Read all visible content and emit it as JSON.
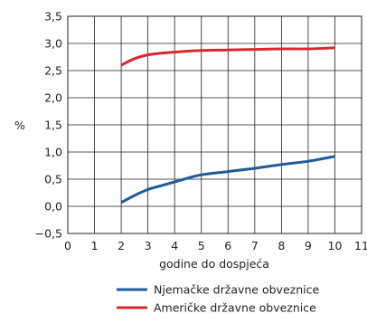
{
  "chart_data": {
    "type": "line",
    "title": "",
    "xlabel": "godine do dospjeća",
    "ylabel": "%",
    "xlim": [
      0,
      11
    ],
    "ylim": [
      -0.5,
      3.5
    ],
    "x_ticks": [
      0,
      1,
      2,
      3,
      4,
      5,
      6,
      7,
      8,
      9,
      10,
      11
    ],
    "y_ticks": [
      -0.5,
      0.0,
      0.5,
      1.0,
      1.5,
      2.0,
      2.5,
      3.0,
      3.5
    ],
    "y_tick_labels": [
      "−0,5",
      "0,0",
      "0,5",
      "1,0",
      "1,5",
      "2,0",
      "2,5",
      "3,0",
      "3,5"
    ],
    "x_tick_labels": [
      "0",
      "1",
      "2",
      "3",
      "4",
      "5",
      "6",
      "7",
      "8",
      "9",
      "10",
      "11"
    ],
    "grid": true,
    "legend_position": "bottom",
    "series": [
      {
        "name": "Njemačke državne obveznice",
        "color": "#1f5a99",
        "x": [
          2,
          2.5,
          3,
          3.5,
          4,
          4.5,
          5,
          6,
          7,
          8,
          9,
          10
        ],
        "values": [
          0.07,
          0.2,
          0.31,
          0.38,
          0.45,
          0.52,
          0.58,
          0.64,
          0.7,
          0.77,
          0.83,
          0.92
        ]
      },
      {
        "name": "Američke državne obveznice",
        "color": "#d7282f",
        "x": [
          2,
          2.5,
          3,
          3.5,
          4,
          5,
          6,
          7,
          8,
          9,
          10
        ],
        "values": [
          2.6,
          2.72,
          2.79,
          2.82,
          2.84,
          2.87,
          2.88,
          2.89,
          2.9,
          2.9,
          2.92
        ]
      }
    ]
  }
}
